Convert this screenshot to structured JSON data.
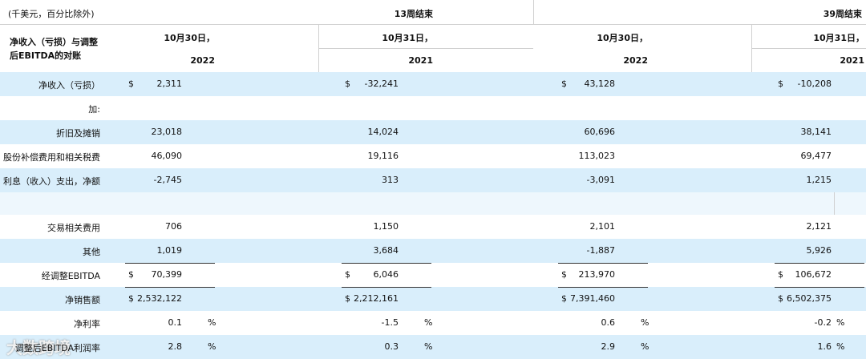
{
  "header": {
    "units": "(千美元，百分比除外)",
    "periods": [
      "13周结束",
      "39周结束"
    ],
    "title": "净收入（亏损）与调整后EBITDA的对账",
    "dates": [
      "10月30日，",
      "10月31日，",
      "10月30日，",
      "10月31日，"
    ],
    "years": [
      "2022",
      "2021",
      "2022",
      "2021"
    ]
  },
  "rows": [
    {
      "label": "净收入（亏损）",
      "cells": [
        {
          "prefix": "$",
          "value": "2,311"
        },
        {
          "prefix": "$",
          "value": "-32,241"
        },
        {
          "prefix": "$",
          "value": "43,128"
        },
        {
          "prefix": "$",
          "value": "-10,208"
        }
      ]
    },
    {
      "label": "加:"
    },
    {
      "label": "折旧及摊销",
      "cells": [
        {
          "value": "23,018"
        },
        {
          "value": "14,024"
        },
        {
          "value": "60,696"
        },
        {
          "value": "38,141"
        }
      ]
    },
    {
      "label": "股份补偿费用和相关税费",
      "cells": [
        {
          "value": "46,090"
        },
        {
          "value": "19,116"
        },
        {
          "value": "113,023"
        },
        {
          "value": "69,477"
        }
      ]
    },
    {
      "label": "利息（收入）支出，净额",
      "cells": [
        {
          "value": "-2,745"
        },
        {
          "value": "313"
        },
        {
          "value": "-3,091"
        },
        {
          "value": "1,215"
        }
      ]
    },
    {},
    {
      "label": "交易相关费用",
      "cells": [
        {
          "value": "706"
        },
        {
          "value": "1,150"
        },
        {
          "value": "2,101"
        },
        {
          "value": "2,121"
        }
      ]
    },
    {
      "label": "其他",
      "cells": [
        {
          "value": "1,019"
        },
        {
          "value": "3,684"
        },
        {
          "value": "-1,887"
        },
        {
          "value": "5,926"
        }
      ]
    },
    {
      "label": "经调整EBITDA",
      "cells": [
        {
          "prefix": "$",
          "value": "70,399"
        },
        {
          "prefix": "$",
          "value": "6,046"
        },
        {
          "prefix": "$",
          "value": "213,970"
        },
        {
          "prefix": "$",
          "value": "106,672"
        }
      ]
    },
    {
      "label": "净销售额",
      "cells": [
        {
          "prefix": "$",
          "value": "2,532,122"
        },
        {
          "prefix": "$",
          "value": "2,212,161"
        },
        {
          "prefix": "$",
          "value": "7,391,460"
        },
        {
          "prefix": "$",
          "value": "6,502,375"
        }
      ]
    },
    {
      "label": "净利率",
      "cells": [
        {
          "value": "0.1",
          "suffix": "%"
        },
        {
          "value": "-1.5",
          "suffix": "%"
        },
        {
          "value": "0.6",
          "suffix": "%"
        },
        {
          "value": "-0.2",
          "suffix": "%"
        }
      ]
    },
    {
      "label": "调整后EBITDA利润率",
      "cells": [
        {
          "value": "2.8",
          "suffix": "%"
        },
        {
          "value": "0.3",
          "suffix": "%"
        },
        {
          "value": "2.9",
          "suffix": "%"
        },
        {
          "value": "1.6",
          "suffix": "%"
        }
      ]
    }
  ],
  "watermark": "大数跨境"
}
